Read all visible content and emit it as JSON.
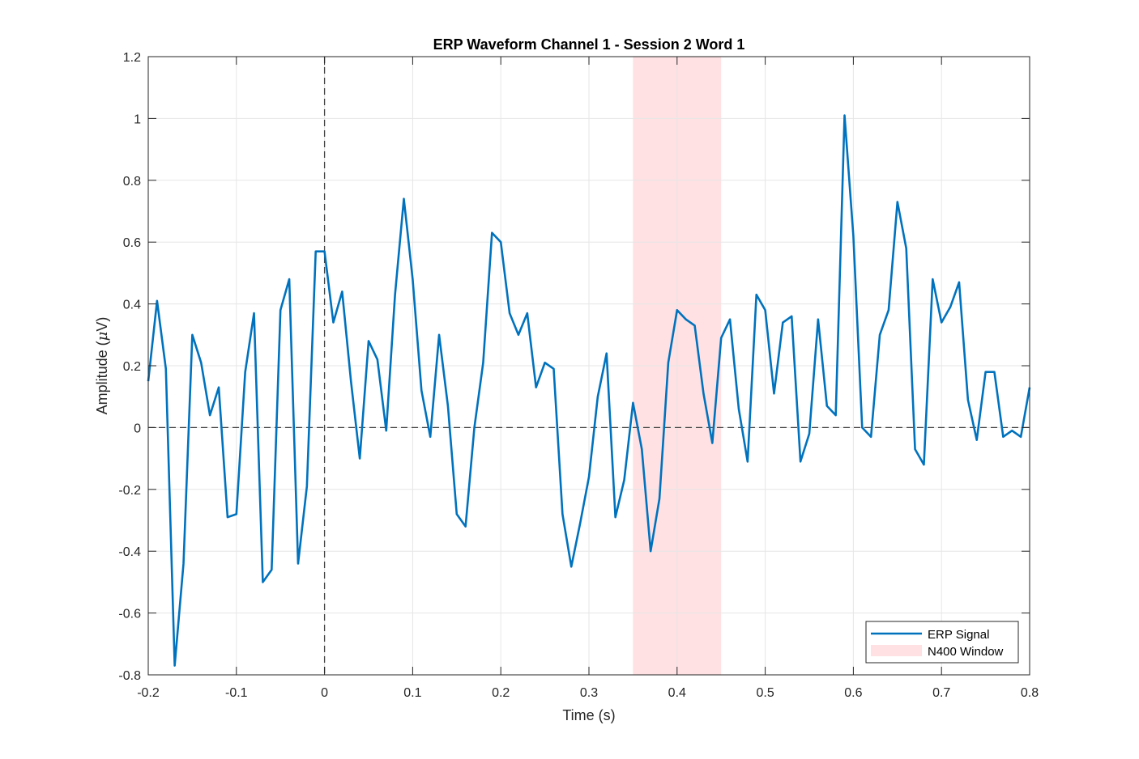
{
  "chart_data": {
    "type": "line",
    "title": "ERP Waveform Channel 1 - Session 2 Word 1",
    "xlabel": "Time (s)",
    "ylabel_prefix": "Amplitude (",
    "ylabel_symbol": "μ",
    "ylabel_suffix": "V)",
    "xlim": [
      -0.2,
      0.8
    ],
    "ylim": [
      -0.8,
      1.2
    ],
    "xticks": [
      -0.2,
      -0.1,
      0,
      0.1,
      0.2,
      0.3,
      0.4,
      0.5,
      0.6,
      0.7,
      0.8
    ],
    "xtick_labels": [
      "-0.2",
      "-0.1",
      "0",
      "0.1",
      "0.2",
      "0.3",
      "0.4",
      "0.5",
      "0.6",
      "0.7",
      "0.8"
    ],
    "yticks": [
      -0.8,
      -0.6,
      -0.4,
      -0.2,
      0,
      0.2,
      0.4,
      0.6,
      0.8,
      1,
      1.2
    ],
    "ytick_labels": [
      "-0.8",
      "-0.6",
      "-0.4",
      "-0.2",
      "0",
      "0.2",
      "0.4",
      "0.6",
      "0.8",
      "1",
      "1.2"
    ],
    "grid": true,
    "legend_position": "bottom-right",
    "series": [
      {
        "name": "ERP Signal",
        "color": "#0072BD",
        "x": [
          -0.2,
          -0.19,
          -0.18,
          -0.17,
          -0.16,
          -0.15,
          -0.14,
          -0.13,
          -0.12,
          -0.11,
          -0.1,
          -0.09,
          -0.08,
          -0.07,
          -0.06,
          -0.05,
          -0.04,
          -0.03,
          -0.02,
          -0.01,
          0,
          0.01,
          0.02,
          0.03,
          0.04,
          0.05,
          0.06,
          0.07,
          0.08,
          0.09,
          0.1,
          0.11,
          0.12,
          0.13,
          0.14,
          0.15,
          0.16,
          0.17,
          0.18,
          0.19,
          0.2,
          0.21,
          0.22,
          0.23,
          0.24,
          0.25,
          0.26,
          0.27,
          0.28,
          0.29,
          0.3,
          0.31,
          0.32,
          0.33,
          0.34,
          0.35,
          0.36,
          0.37,
          0.38,
          0.39,
          0.4,
          0.41,
          0.42,
          0.43,
          0.44,
          0.45,
          0.46,
          0.47,
          0.48,
          0.49,
          0.5,
          0.51,
          0.52,
          0.53,
          0.54,
          0.55,
          0.56,
          0.57,
          0.58,
          0.59,
          0.6,
          0.61,
          0.62,
          0.63,
          0.64,
          0.65,
          0.66,
          0.67,
          0.68,
          0.69,
          0.7,
          0.71,
          0.72,
          0.73,
          0.74,
          0.75,
          0.76,
          0.77,
          0.78,
          0.79,
          0.8
        ],
        "values": [
          0.15,
          0.41,
          0.19,
          -0.77,
          -0.44,
          0.3,
          0.21,
          0.04,
          0.13,
          -0.29,
          -0.28,
          0.18,
          0.37,
          -0.5,
          -0.46,
          0.38,
          0.48,
          -0.44,
          -0.19,
          0.57,
          0.57,
          0.34,
          0.44,
          0.15,
          -0.1,
          0.28,
          0.22,
          -0.01,
          0.43,
          0.74,
          0.48,
          0.12,
          -0.03,
          0.3,
          0.07,
          -0.28,
          -0.32,
          0.0,
          0.21,
          0.63,
          0.6,
          0.37,
          0.3,
          0.37,
          0.13,
          0.21,
          0.19,
          -0.28,
          -0.45,
          -0.31,
          -0.16,
          0.1,
          0.24,
          -0.29,
          -0.17,
          0.08,
          -0.07,
          -0.4,
          -0.23,
          0.21,
          0.38,
          0.35,
          0.33,
          0.11,
          -0.05,
          0.29,
          0.35,
          0.06,
          -0.11,
          0.43,
          0.38,
          0.11,
          0.34,
          0.36,
          -0.11,
          -0.02,
          0.35,
          0.07,
          0.04,
          1.01,
          0.62,
          0.0,
          -0.03,
          0.3,
          0.38,
          0.73,
          0.58,
          -0.07,
          -0.12,
          0.48,
          0.34,
          0.39,
          0.47,
          0.09,
          -0.04,
          0.18,
          0.18,
          -0.03,
          -0.01,
          -0.03,
          0.13
        ]
      }
    ],
    "shaded_region": {
      "name": "N400 Window",
      "x_start": 0.35,
      "x_end": 0.45,
      "color": "#FFE1E3"
    },
    "reference_lines": {
      "zero_time": 0,
      "zero_amplitude": 0,
      "color": "#404040"
    }
  }
}
